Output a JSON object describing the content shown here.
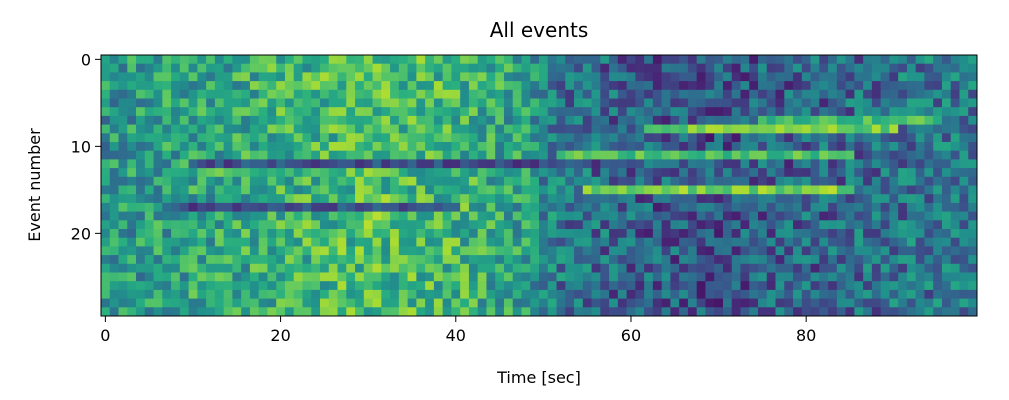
{
  "chart_data": {
    "type": "heatmap",
    "title": "All events",
    "xlabel": "Time [sec]",
    "ylabel": "Event number",
    "x_range": [
      -0.5,
      99.5
    ],
    "y_range": [
      -0.5,
      29.5
    ],
    "y_inverted": true,
    "x_ticks": [
      0,
      20,
      40,
      60,
      80
    ],
    "x_tick_labels": [
      "0",
      "20",
      "40",
      "60",
      "80"
    ],
    "y_ticks": [
      0,
      10,
      20
    ],
    "y_tick_labels": [
      "0",
      "10",
      "20"
    ],
    "n_time_bins": 100,
    "n_events": 30,
    "colormap": "viridis",
    "grid": false,
    "legend": "none",
    "value_scale": [
      0,
      1
    ],
    "activity_profile": {
      "description_points_x": [
        0,
        10,
        20,
        30,
        40,
        48,
        52,
        60,
        70,
        80,
        90,
        99
      ],
      "mean_level": [
        0.52,
        0.58,
        0.64,
        0.7,
        0.66,
        0.56,
        0.4,
        0.32,
        0.28,
        0.33,
        0.38,
        0.42
      ]
    },
    "highlighted_events": [
      {
        "event": 12,
        "x_start": 10,
        "x_end": 60,
        "level": 0.25
      },
      {
        "event": 17,
        "x_start": 8,
        "x_end": 40,
        "level": 0.25
      },
      {
        "event": 8,
        "x_start": 62,
        "x_end": 90,
        "level": 0.78
      },
      {
        "event": 11,
        "x_start": 52,
        "x_end": 85,
        "level": 0.72
      },
      {
        "event": 15,
        "x_start": 55,
        "x_end": 85,
        "level": 0.8
      },
      {
        "event": 7,
        "x_start": 75,
        "x_end": 95,
        "level": 0.7
      }
    ]
  }
}
